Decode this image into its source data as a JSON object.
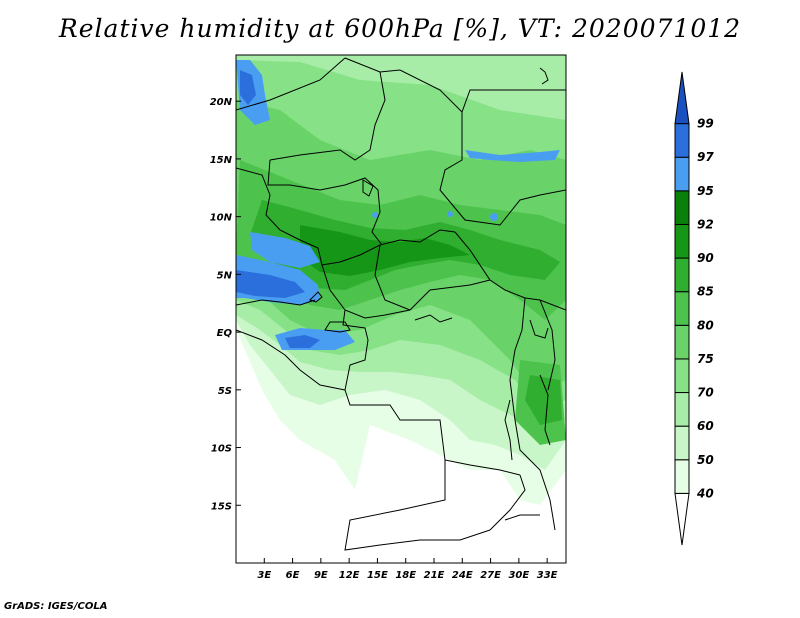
{
  "title": "Relative humidity at 600hPa [%], VT: 2020071012",
  "credit": "GrADS: IGES/COLA",
  "map": {
    "lon_range": [
      0,
      35
    ],
    "lat_range": [
      -20,
      24
    ],
    "lon_ticks": [
      {
        "lon": 3,
        "label": "3E"
      },
      {
        "lon": 6,
        "label": "6E"
      },
      {
        "lon": 9,
        "label": "9E"
      },
      {
        "lon": 12,
        "label": "12E"
      },
      {
        "lon": 15,
        "label": "15E"
      },
      {
        "lon": 18,
        "label": "18E"
      },
      {
        "lon": 21,
        "label": "21E"
      },
      {
        "lon": 24,
        "label": "24E"
      },
      {
        "lon": 27,
        "label": "27E"
      },
      {
        "lon": 30,
        "label": "30E"
      },
      {
        "lon": 33,
        "label": "33E"
      }
    ],
    "lat_ticks": [
      {
        "lat": 20,
        "label": "20N"
      },
      {
        "lat": 15,
        "label": "15N"
      },
      {
        "lat": 10,
        "label": "10N"
      },
      {
        "lat": 5,
        "label": "5N"
      },
      {
        "lat": 0,
        "label": "EQ"
      },
      {
        "lat": -5,
        "label": "5S"
      },
      {
        "lat": -10,
        "label": "10S"
      },
      {
        "lat": -15,
        "label": "15S"
      }
    ]
  },
  "colorbar": {
    "levels": [
      "40",
      "50",
      "60",
      "70",
      "75",
      "80",
      "85",
      "90",
      "92",
      "95",
      "97",
      "99"
    ],
    "colors": [
      "#ffffff",
      "#e6fde6",
      "#c9f6c9",
      "#a7eda7",
      "#87e187",
      "#69d369",
      "#4dc24d",
      "#30ae30",
      "#169616",
      "#0a800a",
      "#4a9ef2",
      "#2b6fdc",
      "#1b50c0"
    ]
  }
}
